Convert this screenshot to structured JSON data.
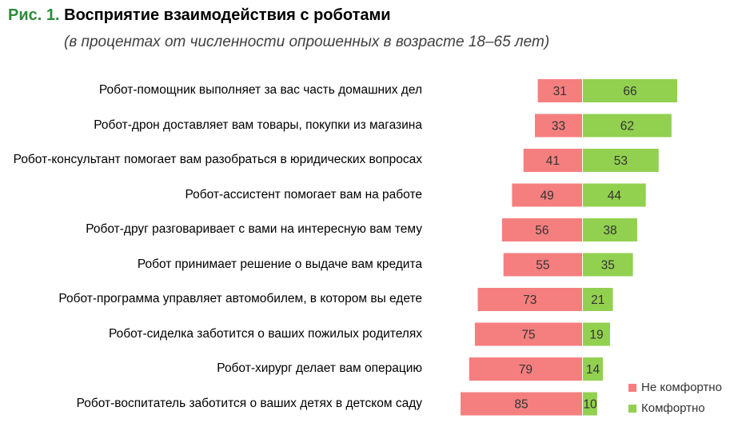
{
  "title": {
    "fig_label": "Рис. 1.",
    "text": "Восприятие взаимодействия с роботами"
  },
  "subtitle": "(в процентах от численности опрошенных в возрасте 18–65 лет)",
  "colors": {
    "not_comfortable": "#f57f7f",
    "comfortable": "#92d050",
    "fig_label": "#2e8b3c"
  },
  "chart_data": {
    "type": "bar",
    "orientation": "horizontal-diverging",
    "categories": [
      "Робот-помощник выполняет за вас часть домашних дел",
      "Робот-дрон доставляет вам товары, покупки из магазина",
      "Робот-консультант помогает вам разобраться в юридических вопросах",
      "Робот-ассистент помогает вам на работе",
      "Робот-друг разговаривает с вами на интересную вам тему",
      "Робот принимает решение о выдаче вам кредита",
      "Робот-программа управляет автомобилем, в котором вы едете",
      "Робот-сиделка заботится о ваших пожилых родителях",
      "Робот-хирург делает вам операцию",
      "Робот-воспитатель заботится о ваших детях в детском саду"
    ],
    "series": [
      {
        "name": "Не комфортно",
        "values": [
          31,
          33,
          41,
          49,
          56,
          55,
          73,
          75,
          79,
          85
        ]
      },
      {
        "name": "Комфортно",
        "values": [
          66,
          62,
          53,
          44,
          38,
          35,
          21,
          19,
          14,
          10
        ]
      }
    ],
    "legend": "bottom-right",
    "grid": false
  }
}
